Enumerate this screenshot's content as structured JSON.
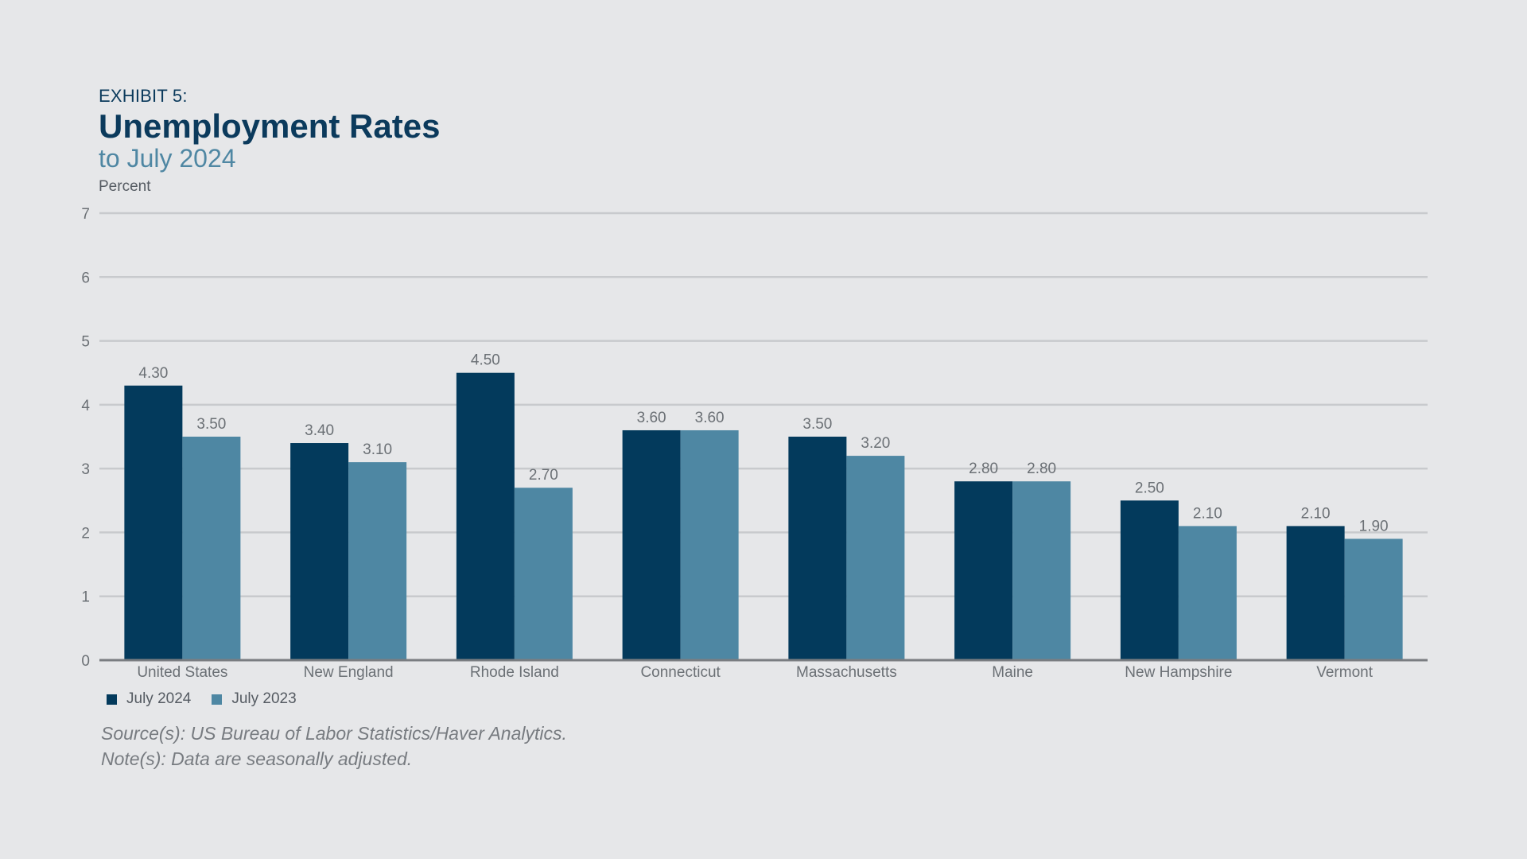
{
  "header": {
    "exhibit": "EXHIBIT 5:",
    "title": "Unemployment Rates",
    "subtitle": "to July 2024"
  },
  "colors": {
    "series_2024": "#033a5c",
    "series_2023": "#4e87a3",
    "grid": "#c8cacd",
    "axis": "#7a7d81",
    "label_text": "#6b7075"
  },
  "legend": {
    "items": [
      "July 2024",
      "July 2023"
    ]
  },
  "footer": {
    "source": "Source(s): US Bureau of Labor Statistics/Haver Analytics.",
    "note": "Note(s): Data are seasonally adjusted."
  },
  "chart_data": {
    "type": "bar",
    "title": "Unemployment Rates",
    "subtitle": "to July 2024",
    "ylabel": "Percent",
    "xlabel": "",
    "ylim": [
      0,
      7
    ],
    "yticks": [
      0,
      1,
      2,
      3,
      4,
      5,
      6,
      7
    ],
    "grid": true,
    "legend_position": "bottom-left",
    "categories": [
      "United States",
      "New England",
      "Rhode Island",
      "Connecticut",
      "Massachusetts",
      "Maine",
      "New Hampshire",
      "Vermont"
    ],
    "series": [
      {
        "name": "July 2024",
        "values": [
          4.3,
          3.4,
          4.5,
          3.6,
          3.5,
          2.8,
          2.5,
          2.1
        ],
        "labels": [
          "4.30",
          "3.40",
          "4.50",
          "3.60",
          "3.50",
          "2.80",
          "2.50",
          "2.10"
        ]
      },
      {
        "name": "July 2023",
        "values": [
          3.5,
          3.1,
          2.7,
          3.6,
          3.2,
          2.8,
          2.1,
          1.9
        ],
        "labels": [
          "3.50",
          "3.10",
          "2.70",
          "3.60",
          "3.20",
          "2.80",
          "2.10",
          "1.90"
        ]
      }
    ]
  }
}
